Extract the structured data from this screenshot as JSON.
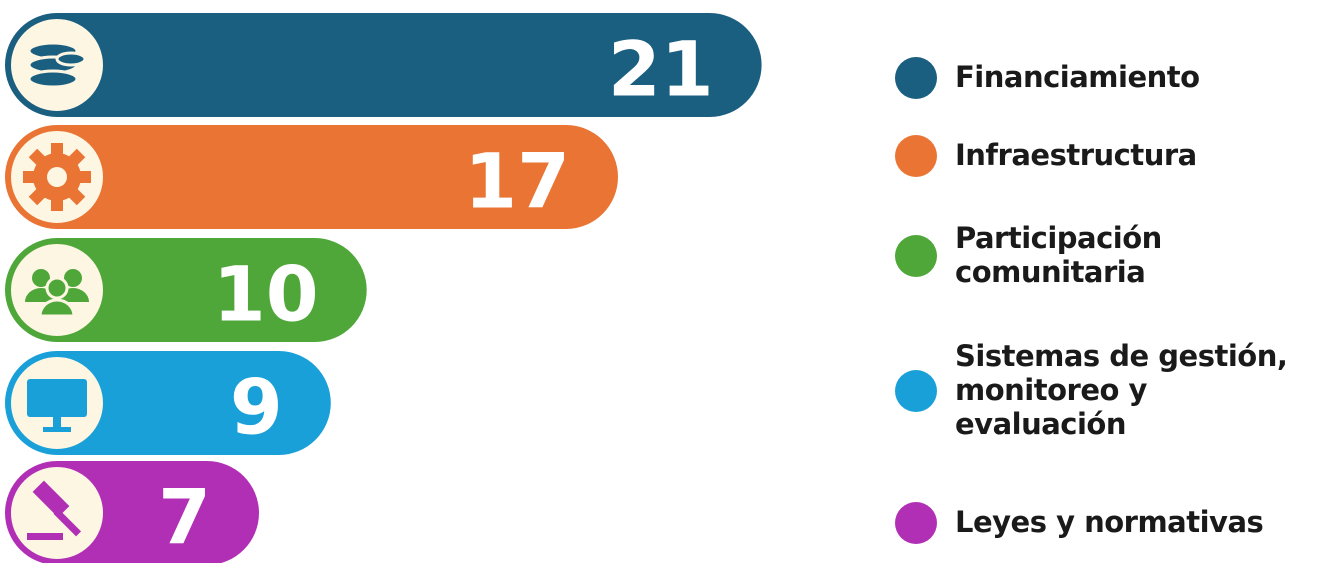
{
  "chart_data": {
    "type": "bar",
    "categories": [
      "Financiamiento",
      "Infraestructura",
      "Participación comunitaria",
      "Sistemas de gestión, monitoreo y evaluación",
      "Leyes y normativas"
    ],
    "values": [
      21,
      17,
      10,
      9,
      7
    ],
    "colors": [
      "#1a5e80",
      "#e97434",
      "#4fa73a",
      "#1aa0d8",
      "#b12fb5"
    ]
  }
}
